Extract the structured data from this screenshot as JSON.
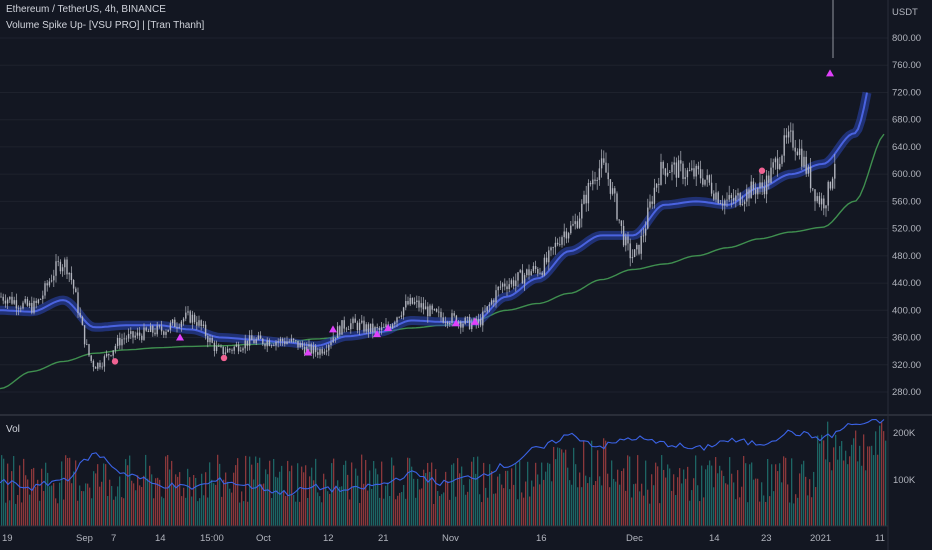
{
  "header": {
    "symbol_line": "Ethereum / TetherUS, 4h, BINANCE",
    "indicator_line": "Volume Spike Up- [VSU PRO] | [Tran Thanh]"
  },
  "volume_pane": {
    "label": "Vol"
  },
  "price_axis": {
    "currency": "USDT",
    "ticks": [
      "800.00",
      "760.00",
      "720.00",
      "680.00",
      "640.00",
      "600.00",
      "560.00",
      "520.00",
      "480.00",
      "440.00",
      "400.00",
      "360.00",
      "320.00",
      "280.00"
    ]
  },
  "volume_axis": {
    "ticks": [
      "200K",
      "100K"
    ]
  },
  "time_axis": {
    "labels": [
      "19",
      "Sep",
      "7",
      "14",
      "15:00",
      "Oct",
      "12",
      "21",
      "Nov",
      "16",
      "Dec",
      "14",
      "23",
      "2021",
      "11"
    ]
  },
  "colors": {
    "background": "#131722",
    "candles": "#b2b5be",
    "ma_band": "#2c47b8",
    "ma_line": "#4a63e0",
    "ma_long": "#3f8f4f",
    "vol_up": "#26a69a",
    "vol_down": "#ef5350",
    "vol_ma": "#3b63e6",
    "signal_up": "#e040fb",
    "signal_dot": "#f06292"
  },
  "chart_data": {
    "type": "line",
    "title": "Ethereum / TetherUS, 4h, BINANCE",
    "ylabel": "USDT",
    "ylim": [
      260,
      830
    ],
    "series": [
      {
        "name": "Ethereum / TetherUS",
        "x": [
          "Aug 19",
          "Aug 28",
          "Sep 1",
          "Sep 5",
          "Sep 10",
          "Sep 16",
          "Sep 21",
          "Sep 26",
          "Oct 1",
          "Oct 7",
          "Oct 10",
          "Oct 16",
          "Oct 21",
          "Oct 26",
          "Nov 1",
          "Nov 6",
          "Nov 11",
          "Nov 16",
          "Nov 20",
          "Nov 24",
          "Nov 28",
          "Dec 1",
          "Dec 5",
          "Dec 10",
          "Dec 16",
          "Dec 21",
          "Dec 25",
          "Dec 31",
          "Jan 4"
        ],
        "values": [
          420,
          405,
          470,
          320,
          360,
          370,
          390,
          340,
          355,
          355,
          340,
          380,
          370,
          410,
          390,
          380,
          440,
          460,
          520,
          610,
          480,
          610,
          600,
          560,
          580,
          650,
          560,
          750,
          980
        ]
      },
      {
        "name": "Volume Spike Up- [VSU PRO]",
        "values": [
          400,
          398,
          415,
          375,
          378,
          378,
          372,
          360,
          357,
          353,
          348,
          362,
          368,
          385,
          383,
          383,
          420,
          447,
          487,
          510,
          510,
          555,
          560,
          555,
          580,
          600,
          615,
          660,
          830
        ]
      },
      {
        "values": [
          285,
          310,
          325,
          337,
          342,
          345,
          347,
          348,
          350,
          353,
          358,
          362,
          368,
          374,
          378,
          385,
          400,
          410,
          425,
          445,
          460,
          468,
          480,
          492,
          505,
          515,
          522,
          560,
          660
        ]
      }
    ]
  }
}
